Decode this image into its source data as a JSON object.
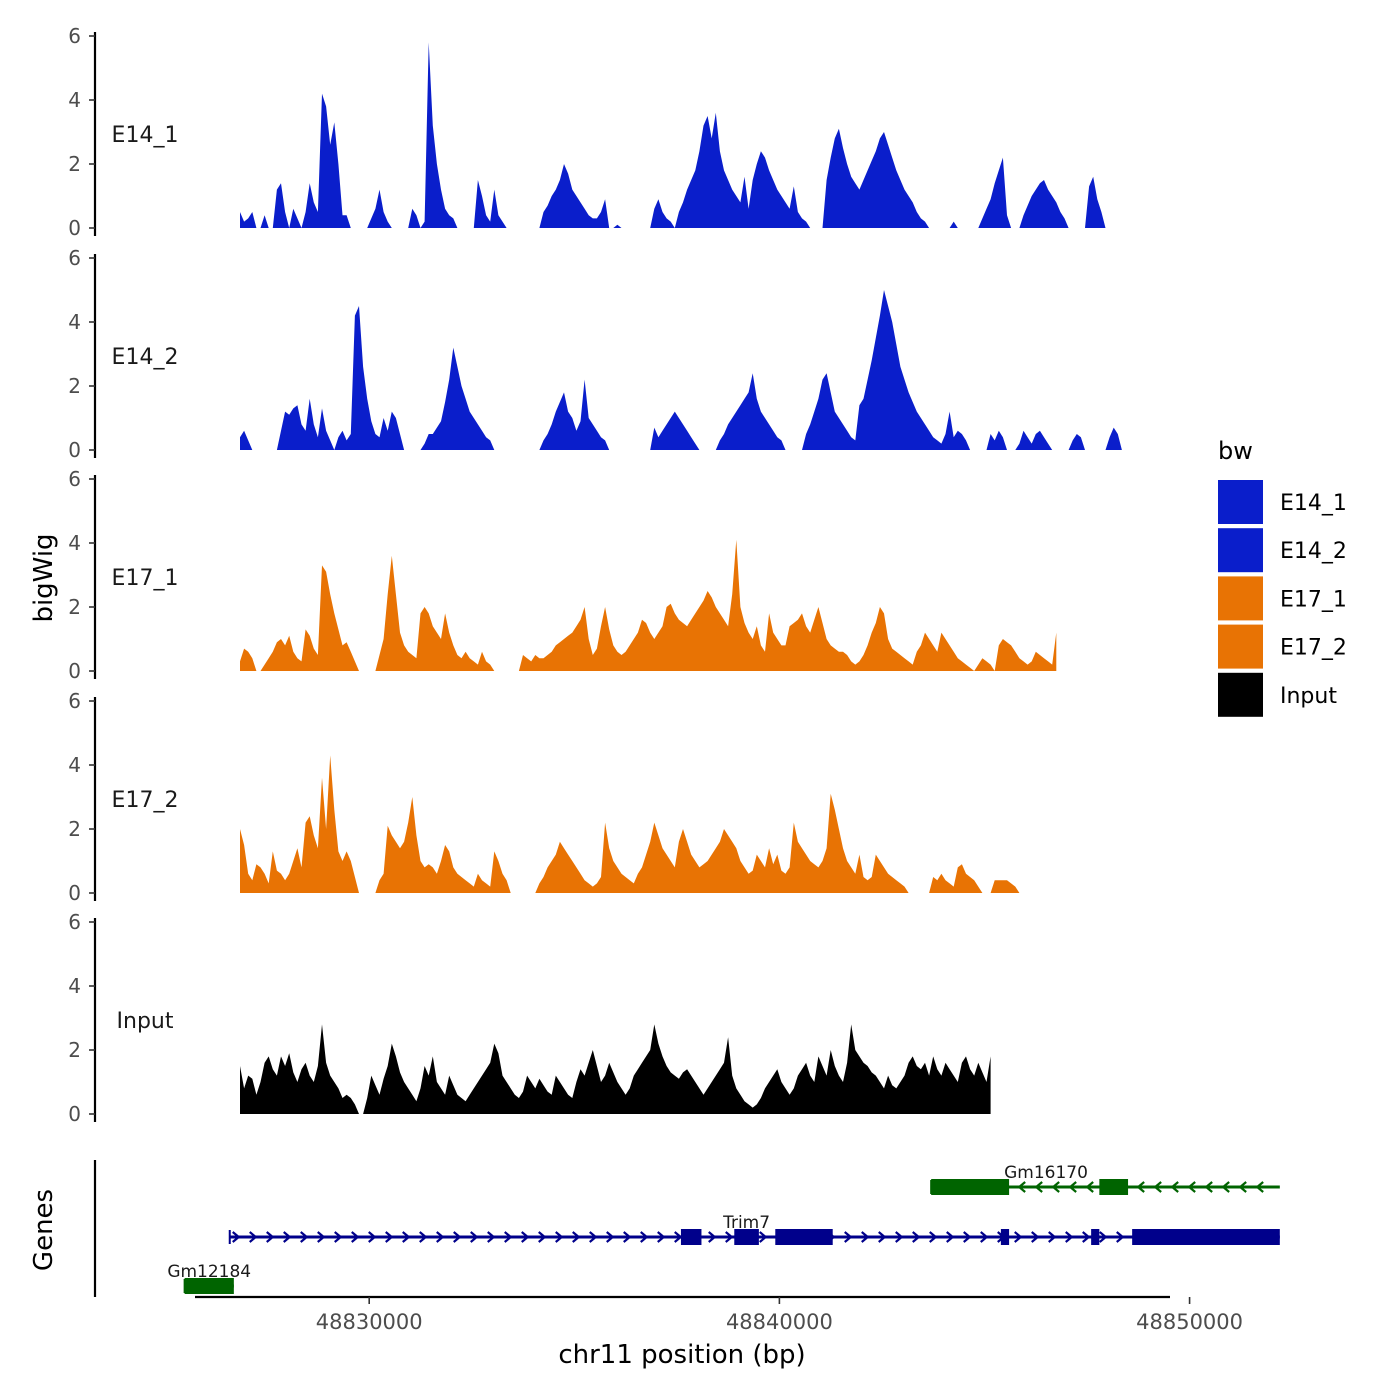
{
  "chart_data": {
    "type": "area",
    "title": "",
    "ylabel": "bigWig",
    "xlabel": "chr11 position (bp)",
    "genes_label": "Genes",
    "ylim": [
      0,
      6
    ],
    "y_ticks": [
      "0",
      "2",
      "4",
      "6"
    ],
    "xlim": [
      48822300,
      48853200
    ],
    "x_ticks": [
      {
        "value": 48830000,
        "label": "48830000"
      },
      {
        "value": 48840000,
        "label": "48840000"
      },
      {
        "value": 48850000,
        "label": "48850000"
      }
    ],
    "legend": {
      "title": "bw",
      "position": "right",
      "entries": [
        {
          "label": "E14_1",
          "color": "#0A1ECB"
        },
        {
          "label": "E14_2",
          "color": "#0A1ECB"
        },
        {
          "label": "E17_1",
          "color": "#E87304"
        },
        {
          "label": "E17_2",
          "color": "#E87304"
        },
        {
          "label": "Input",
          "color": "#000000"
        }
      ]
    },
    "tracks": [
      {
        "name": "E14_1",
        "color": "#0A1ECB",
        "x_start": 48826850,
        "x_step": 100,
        "values": [
          0.5,
          0.2,
          0.3,
          0.5,
          0,
          0,
          0.4,
          0,
          0,
          1.2,
          1.4,
          0.5,
          0,
          0.6,
          0.3,
          0,
          0.5,
          1.4,
          0.8,
          0.5,
          4.2,
          3.8,
          2.6,
          3.3,
          2.0,
          0.4,
          0.4,
          0,
          0,
          0,
          0,
          0,
          0.3,
          0.6,
          1.2,
          0.5,
          0.2,
          0,
          0,
          0,
          0,
          0,
          0.6,
          0.4,
          0,
          0.2,
          5.8,
          3.2,
          2.0,
          1.2,
          0.6,
          0.4,
          0.3,
          0,
          0,
          0,
          0,
          0,
          1.5,
          1.0,
          0.4,
          0.2,
          1.2,
          0.4,
          0.2,
          0,
          0,
          0,
          0,
          0,
          0,
          0,
          0,
          0,
          0.5,
          0.7,
          1.0,
          1.2,
          1.5,
          2.0,
          1.7,
          1.2,
          1.0,
          0.8,
          0.6,
          0.4,
          0.3,
          0.3,
          0.5,
          0.9,
          0,
          0,
          0.1,
          0,
          0,
          0,
          0,
          0,
          0,
          0,
          0,
          0.6,
          0.9,
          0.5,
          0.3,
          0.2,
          0,
          0.5,
          0.8,
          1.2,
          1.5,
          1.8,
          2.4,
          3.2,
          3.5,
          2.8,
          3.6,
          2.4,
          1.8,
          1.5,
          1.2,
          1.0,
          0.8,
          1.6,
          0.6,
          1.5,
          2.0,
          2.4,
          2.2,
          1.8,
          1.5,
          1.2,
          1.0,
          0.8,
          0.6,
          1.3,
          0.5,
          0.3,
          0.2,
          0,
          0,
          0,
          0,
          1.5,
          2.2,
          2.8,
          3.1,
          2.5,
          2.0,
          1.6,
          1.4,
          1.2,
          1.5,
          1.8,
          2.1,
          2.4,
          2.8,
          3.0,
          2.6,
          2.2,
          1.8,
          1.5,
          1.2,
          1.0,
          0.8,
          0.5,
          0.3,
          0.2,
          0,
          0,
          0,
          0,
          0,
          0,
          0.2,
          0,
          0,
          0,
          0,
          0,
          0,
          0.3,
          0.6,
          0.9,
          1.4,
          1.8,
          2.2,
          0.4,
          0,
          0,
          0,
          0.4,
          0.7,
          1.0,
          1.2,
          1.4,
          1.5,
          1.2,
          1.0,
          0.8,
          0.5,
          0.3,
          0,
          0,
          0,
          0,
          0,
          1.3,
          1.6,
          0.9,
          0.5,
          0,
          0,
          0,
          0,
          0,
          0
        ]
      },
      {
        "name": "E14_2",
        "color": "#0A1ECB",
        "x_start": 48826850,
        "x_step": 100,
        "values": [
          0.4,
          0.6,
          0.3,
          0,
          0,
          0,
          0,
          0,
          0,
          0,
          0.6,
          1.2,
          1.1,
          1.3,
          1.4,
          0.8,
          0.6,
          1.6,
          0.8,
          0.4,
          1.3,
          0.6,
          0.3,
          0,
          0.4,
          0.6,
          0.3,
          0.5,
          4.2,
          4.5,
          2.6,
          1.6,
          0.9,
          0.5,
          0.4,
          1.0,
          0.6,
          1.2,
          1.0,
          0.5,
          0,
          0,
          0,
          0,
          0,
          0.2,
          0.5,
          0.5,
          0.7,
          0.9,
          1.5,
          2.2,
          3.2,
          2.6,
          2.0,
          1.6,
          1.2,
          1.0,
          0.8,
          0.6,
          0.4,
          0.3,
          0,
          0,
          0,
          0,
          0,
          0,
          0,
          0,
          0,
          0,
          0,
          0,
          0.3,
          0.5,
          0.8,
          1.2,
          1.5,
          1.8,
          1.2,
          1.0,
          0.6,
          0.9,
          2.2,
          1.0,
          0.8,
          0.6,
          0.4,
          0.3,
          0,
          0,
          0,
          0,
          0,
          0,
          0,
          0,
          0,
          0,
          0,
          0.7,
          0.4,
          0.6,
          0.8,
          1.0,
          1.2,
          1.0,
          0.8,
          0.6,
          0.4,
          0.2,
          0,
          0,
          0,
          0,
          0,
          0.3,
          0.5,
          0.8,
          1.0,
          1.2,
          1.4,
          1.6,
          1.8,
          2.4,
          1.6,
          1.2,
          1.0,
          0.8,
          0.6,
          0.4,
          0.3,
          0,
          0,
          0,
          0,
          0,
          0.5,
          0.8,
          1.2,
          1.6,
          2.2,
          2.4,
          1.8,
          1.2,
          1.0,
          0.8,
          0.6,
          0.4,
          0.3,
          1.4,
          1.6,
          2.2,
          2.8,
          3.5,
          4.2,
          5.0,
          4.5,
          4.0,
          3.3,
          2.6,
          2.2,
          1.8,
          1.5,
          1.2,
          1.0,
          0.8,
          0.6,
          0.4,
          0.3,
          0.2,
          0.5,
          1.2,
          0.4,
          0.6,
          0.5,
          0.3,
          0,
          0,
          0,
          0,
          0,
          0.5,
          0.3,
          0.6,
          0.4,
          0,
          0,
          0,
          0.2,
          0.6,
          0.4,
          0.2,
          0.5,
          0.6,
          0.4,
          0.2,
          0,
          0,
          0,
          0,
          0,
          0.3,
          0.5,
          0.4,
          0,
          0,
          0,
          0,
          0,
          0,
          0.4,
          0.7,
          0.5,
          0,
          0,
          0,
          0,
          0
        ]
      },
      {
        "name": "E17_1",
        "color": "#E87304",
        "x_start": 48826850,
        "x_step": 100,
        "values": [
          0.3,
          0.7,
          0.6,
          0.4,
          0,
          0,
          0.2,
          0.4,
          0.6,
          0.9,
          1.0,
          0.8,
          1.1,
          0.6,
          0.4,
          0.3,
          1.3,
          1.1,
          0.7,
          0.5,
          3.3,
          3.1,
          2.4,
          1.8,
          1.3,
          0.8,
          0.9,
          0.6,
          0.3,
          0,
          0,
          0,
          0,
          0,
          0.5,
          1.0,
          2.4,
          3.6,
          2.4,
          1.2,
          0.8,
          0.6,
          0.5,
          0.4,
          1.8,
          2.0,
          1.8,
          1.4,
          1.2,
          1.0,
          1.8,
          1.2,
          0.8,
          0.5,
          0.4,
          0.6,
          0.4,
          0.3,
          0.2,
          0.6,
          0.3,
          0.2,
          0,
          0,
          0,
          0,
          0,
          0,
          0,
          0.5,
          0.4,
          0.3,
          0.5,
          0.4,
          0.4,
          0.5,
          0.6,
          0.8,
          0.9,
          1.0,
          1.1,
          1.2,
          1.4,
          1.6,
          2.0,
          1.0,
          0.5,
          0.7,
          1.4,
          2.0,
          1.3,
          0.8,
          0.6,
          0.5,
          0.6,
          0.8,
          1.0,
          1.2,
          1.6,
          1.5,
          1.2,
          1.0,
          1.2,
          1.4,
          2.0,
          2.1,
          1.8,
          1.6,
          1.5,
          1.4,
          1.6,
          1.8,
          2.0,
          2.2,
          2.5,
          2.3,
          2.0,
          1.8,
          1.6,
          1.4,
          2.4,
          4.1,
          2.0,
          1.5,
          1.2,
          1.0,
          1.4,
          0.8,
          0.6,
          1.8,
          1.2,
          1.0,
          0.8,
          0.8,
          1.4,
          1.5,
          1.6,
          1.8,
          1.4,
          1.2,
          1.6,
          2.0,
          1.5,
          1.0,
          0.8,
          0.7,
          0.6,
          0.6,
          0.5,
          0.3,
          0.2,
          0.3,
          0.5,
          0.8,
          1.2,
          1.5,
          2.0,
          1.8,
          1.0,
          0.7,
          0.6,
          0.5,
          0.4,
          0.3,
          0.2,
          0.6,
          0.8,
          1.2,
          1.0,
          0.8,
          0.6,
          1.2,
          1.0,
          0.8,
          0.6,
          0.4,
          0.3,
          0.2,
          0.1,
          0,
          0.2,
          0.4,
          0.3,
          0.2,
          0,
          0.8,
          1.0,
          0.9,
          0.8,
          0.6,
          0.4,
          0.3,
          0.2,
          0.3,
          0.6,
          0.5,
          0.4,
          0.3,
          0.2,
          1.2
        ]
      },
      {
        "name": "E17_2",
        "color": "#E87304",
        "x_start": 48826850,
        "x_step": 100,
        "values": [
          2.0,
          1.5,
          0.6,
          0.4,
          0.9,
          0.8,
          0.6,
          0.3,
          1.3,
          0.7,
          0.6,
          0.4,
          0.6,
          1.0,
          1.4,
          0.8,
          2.2,
          2.4,
          1.8,
          1.4,
          3.6,
          2.0,
          4.3,
          2.6,
          1.3,
          1.0,
          1.3,
          1.0,
          0.5,
          0,
          0,
          0,
          0,
          0,
          0.4,
          0.6,
          2.1,
          1.8,
          1.6,
          1.4,
          1.6,
          2.2,
          3.0,
          1.8,
          1.0,
          0.8,
          0.9,
          0.8,
          0.6,
          1.0,
          1.5,
          1.3,
          0.8,
          0.6,
          0.5,
          0.4,
          0.3,
          0.2,
          0.6,
          0.4,
          0.3,
          0.2,
          1.3,
          1.0,
          0.6,
          0.4,
          0,
          0,
          0,
          0,
          0,
          0,
          0,
          0.3,
          0.5,
          0.8,
          1.0,
          1.2,
          1.6,
          1.4,
          1.2,
          1.0,
          0.8,
          0.6,
          0.4,
          0.3,
          0.2,
          0.3,
          0.5,
          2.2,
          1.4,
          1.0,
          0.8,
          0.6,
          0.5,
          0.4,
          0.3,
          0.6,
          0.8,
          1.2,
          1.6,
          2.2,
          1.8,
          1.4,
          1.2,
          1.0,
          0.8,
          1.6,
          2.0,
          1.6,
          1.2,
          1.0,
          0.8,
          0.9,
          1.0,
          1.2,
          1.4,
          1.6,
          2.0,
          1.8,
          1.6,
          1.4,
          1.0,
          0.8,
          0.6,
          0.7,
          1.2,
          1.0,
          0.8,
          1.4,
          0.9,
          1.2,
          0.7,
          0.6,
          0.8,
          2.2,
          1.6,
          1.4,
          1.2,
          1.0,
          0.9,
          0.8,
          1.0,
          1.4,
          3.1,
          2.6,
          2.0,
          1.4,
          1.0,
          0.8,
          0.6,
          1.2,
          0.5,
          0.4,
          0.5,
          1.2,
          1.0,
          0.8,
          0.6,
          0.5,
          0.4,
          0.3,
          0.2,
          0,
          0,
          0,
          0,
          0,
          0,
          0.5,
          0.4,
          0.6,
          0.4,
          0.3,
          0.2,
          0.8,
          0.9,
          0.6,
          0.5,
          0.4,
          0.2,
          0,
          0,
          0,
          0.4,
          0.4,
          0.4,
          0.4,
          0.3,
          0.2,
          0,
          0,
          0,
          0,
          0,
          0,
          0,
          0,
          0,
          0,
          0,
          0
        ]
      },
      {
        "name": "Input",
        "color": "#000000",
        "x_start": 48826850,
        "x_step": 100,
        "values": [
          1.5,
          0.8,
          1.2,
          1.1,
          0.6,
          1.0,
          1.6,
          1.8,
          1.4,
          1.2,
          1.8,
          1.5,
          1.9,
          1.3,
          1.0,
          1.4,
          1.6,
          1.2,
          1.0,
          1.5,
          2.8,
          1.6,
          1.2,
          1.0,
          0.8,
          0.5,
          0.6,
          0.5,
          0.3,
          0,
          0,
          0.5,
          1.2,
          0.9,
          0.6,
          1.1,
          1.5,
          2.2,
          1.8,
          1.3,
          1.0,
          0.8,
          0.6,
          0.4,
          0.8,
          1.5,
          1.2,
          1.8,
          1.0,
          0.8,
          0.6,
          1.2,
          0.9,
          0.6,
          0.5,
          0.4,
          0.6,
          0.8,
          1.0,
          1.2,
          1.4,
          1.6,
          2.2,
          1.9,
          1.2,
          1.0,
          0.8,
          0.6,
          0.5,
          0.7,
          1.2,
          1.0,
          0.8,
          1.1,
          0.9,
          0.7,
          0.6,
          1.2,
          1.0,
          0.8,
          0.6,
          0.5,
          1.0,
          1.4,
          1.2,
          1.6,
          2.0,
          1.5,
          1.0,
          1.2,
          1.6,
          1.3,
          1.0,
          0.8,
          0.6,
          0.8,
          1.2,
          1.4,
          1.6,
          1.8,
          2.0,
          2.8,
          2.2,
          1.8,
          1.5,
          1.3,
          1.2,
          1.1,
          1.3,
          1.4,
          1.2,
          1.0,
          0.8,
          0.6,
          0.8,
          1.0,
          1.2,
          1.4,
          1.6,
          2.4,
          1.2,
          0.8,
          0.6,
          0.4,
          0.3,
          0.2,
          0.3,
          0.5,
          0.8,
          1.0,
          1.2,
          1.4,
          1.0,
          0.8,
          0.6,
          0.8,
          1.2,
          1.4,
          1.6,
          1.2,
          1.0,
          1.8,
          1.5,
          1.2,
          2.0,
          1.5,
          1.2,
          1.0,
          1.6,
          2.8,
          2.0,
          1.8,
          1.6,
          1.5,
          1.3,
          1.2,
          1.0,
          0.8,
          1.2,
          0.9,
          0.8,
          1.0,
          1.2,
          1.6,
          1.8,
          1.5,
          1.4,
          1.6,
          1.2,
          1.8,
          1.4,
          1.2,
          1.6,
          1.4,
          1.2,
          1.0,
          1.6,
          1.8,
          1.4,
          1.2,
          1.6,
          1.3,
          1.0,
          1.8
        ]
      }
    ],
    "genes": [
      {
        "name": "Gm16170",
        "strand": "-",
        "color": "#006400",
        "row": 1,
        "start": 48843700,
        "end": 48852200,
        "label_x": 48846500,
        "exons": [
          [
            48843700,
            48845600
          ],
          [
            48847800,
            48848500
          ]
        ]
      },
      {
        "name": "Trim7",
        "strand": "+",
        "color": "#00008B",
        "row": 2,
        "start": 48826600,
        "end": 48852200,
        "label_x": 48839200,
        "exons": [
          [
            48837600,
            48838100
          ],
          [
            48838900,
            48839500
          ],
          [
            48839900,
            48841300
          ],
          [
            48845400,
            48845600
          ],
          [
            48847600,
            48847800
          ],
          [
            48848600,
            48852200
          ]
        ]
      },
      {
        "name": "Gm12184",
        "strand": "+",
        "color": "#006400",
        "row": 3,
        "start": 48825500,
        "end": 48826700,
        "label_x": 48826100,
        "exons": [
          [
            48825500,
            48826700
          ]
        ]
      }
    ]
  }
}
